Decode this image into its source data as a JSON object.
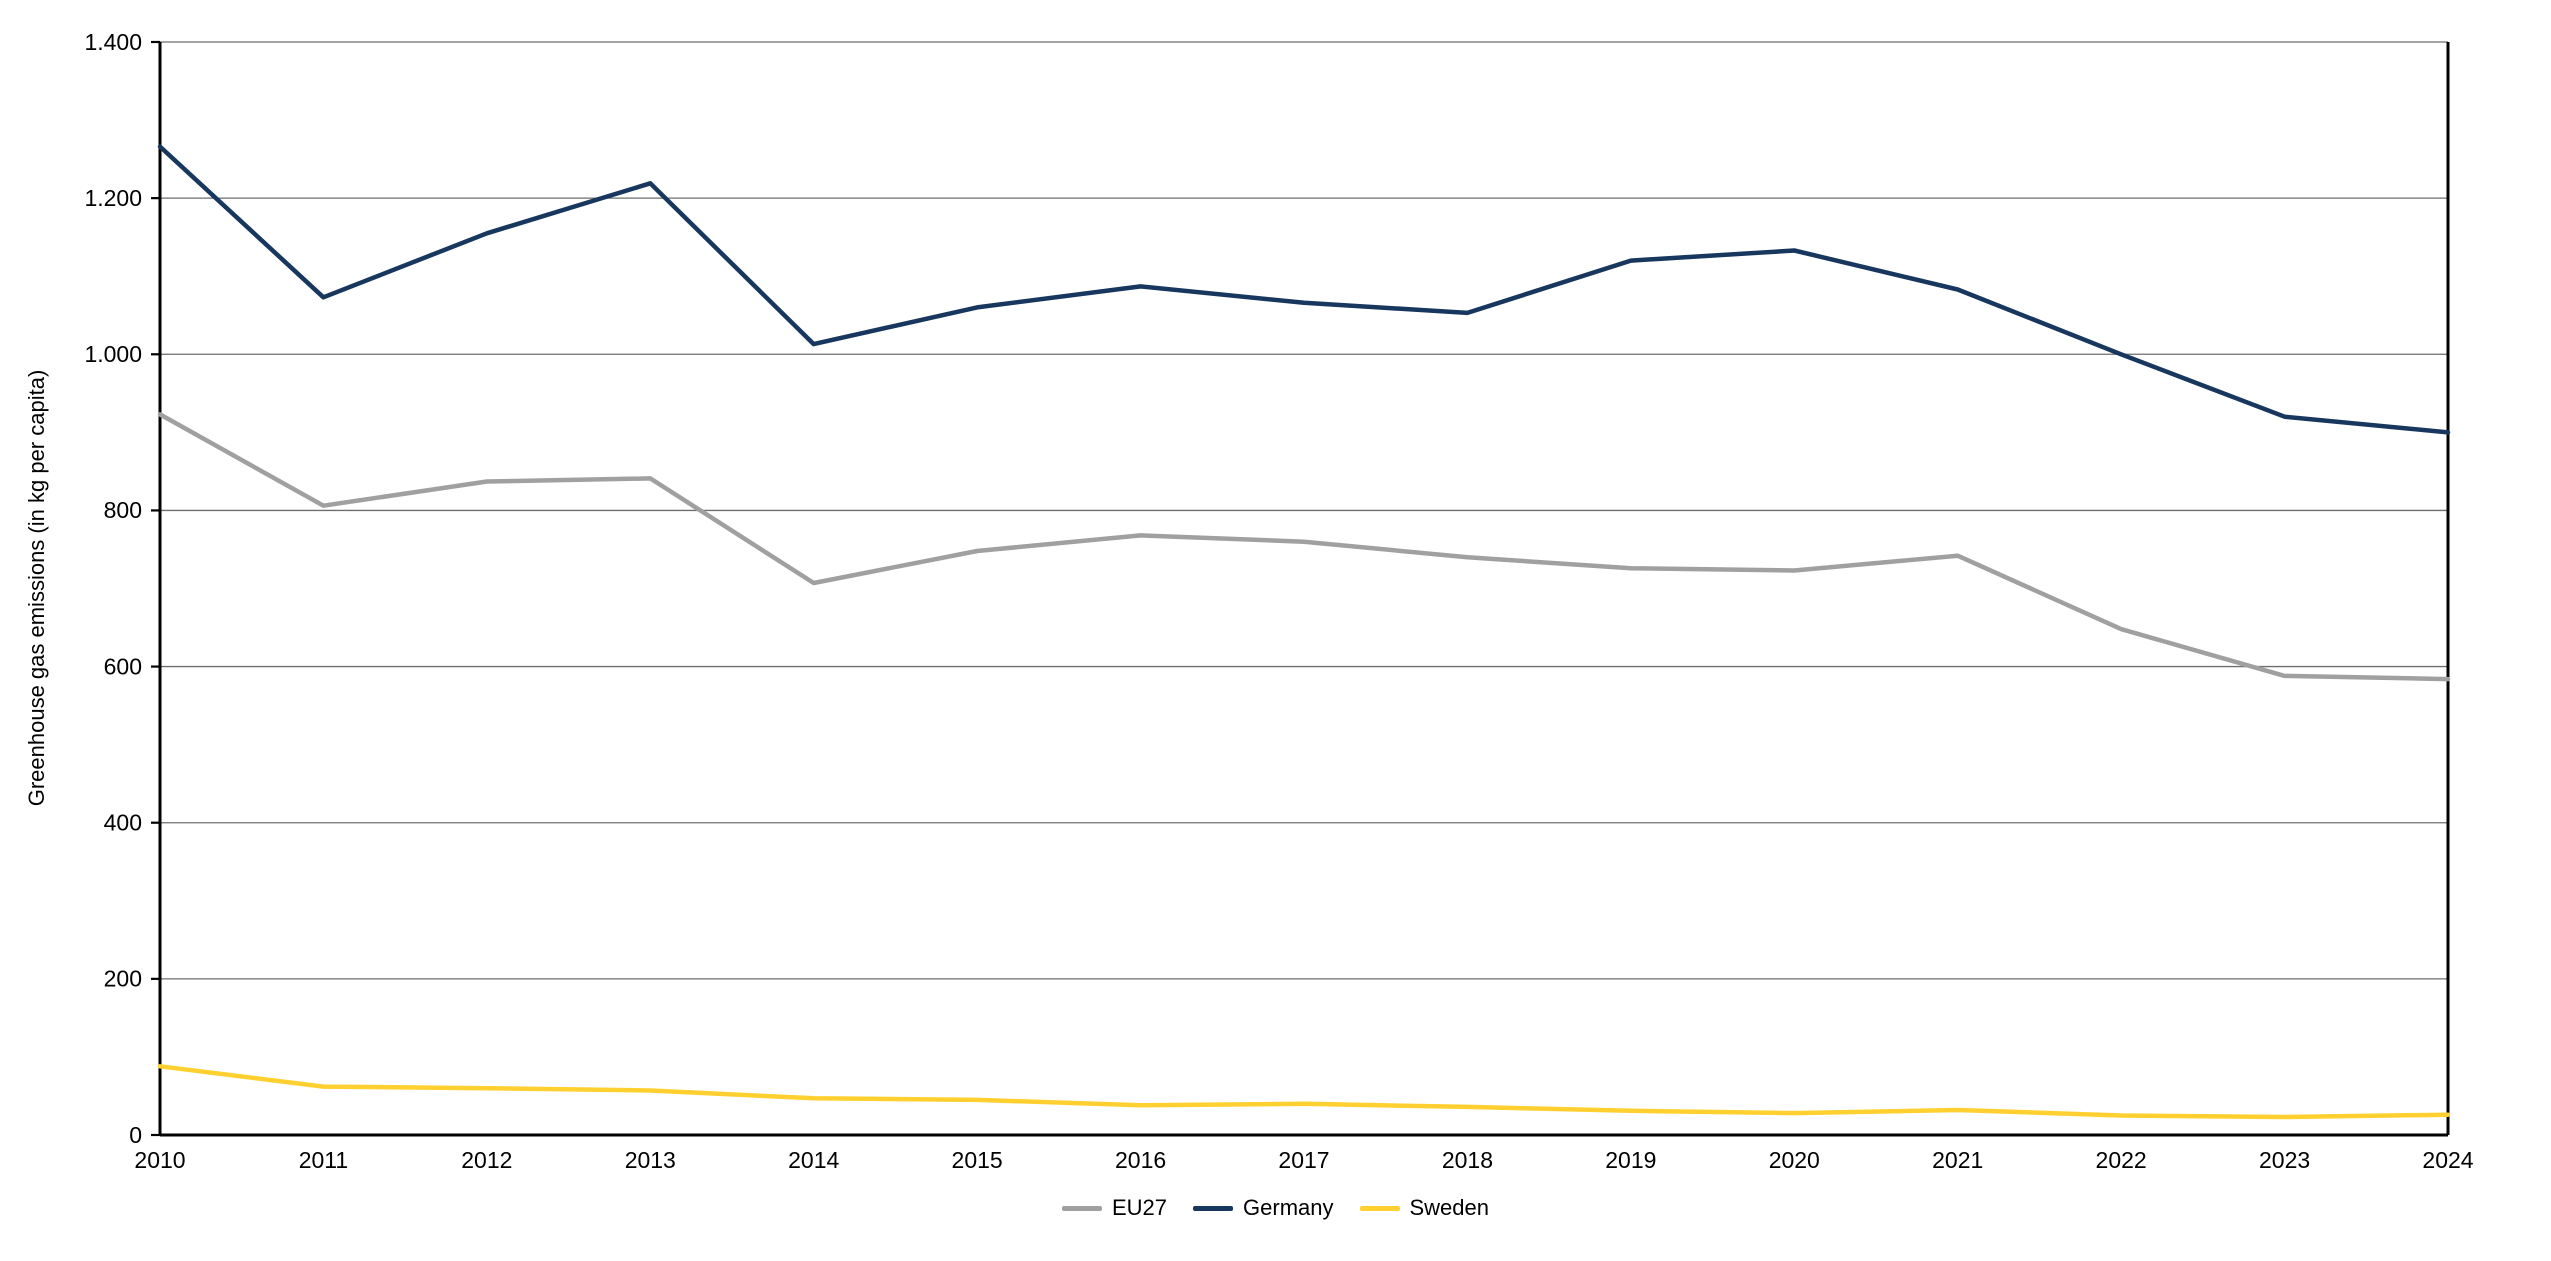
{
  "figure": {
    "background": "#ffffff",
    "axis_color": "#000000",
    "grid_color": "#6e6e6e",
    "text_color": "#000000",
    "tick_label_font_px": 23,
    "axis_title_font_px": 22
  },
  "chart_data": {
    "type": "line",
    "title": "",
    "xlabel": "",
    "ylabel": "Greenhouse gas emissions (in kg per capita)",
    "x": [
      "2010",
      "2011",
      "2012",
      "2013",
      "2014",
      "2015",
      "2016",
      "2017",
      "2018",
      "2019",
      "2020",
      "2021",
      "2022",
      "2023",
      "2024"
    ],
    "ylim": [
      0,
      1400
    ],
    "ytick_values": [
      0,
      200,
      400,
      600,
      800,
      1000,
      1200,
      1400
    ],
    "ytick_labels": [
      "0",
      "200",
      "400",
      "600",
      "800",
      "1.000",
      "1.200",
      "1.400"
    ],
    "grid": true,
    "legend_position": "bottom-center",
    "series": [
      {
        "name": "EU27",
        "color": "#a0a0a0",
        "values": [
          923,
          806,
          837,
          841,
          707,
          748,
          768,
          760,
          740,
          726,
          723,
          742,
          648,
          588,
          584
        ]
      },
      {
        "name": "Germany",
        "color": "#17375e",
        "values": [
          1266,
          1073,
          1155,
          1219,
          1013,
          1060,
          1087,
          1066,
          1053,
          1120,
          1133,
          1083,
          1000,
          920,
          900
        ]
      },
      {
        "name": "Sweden",
        "color": "#ffd02f",
        "values": [
          88,
          62,
          60,
          57,
          47,
          45,
          38,
          40,
          36,
          31,
          28,
          32,
          25,
          23,
          26
        ]
      }
    ]
  }
}
